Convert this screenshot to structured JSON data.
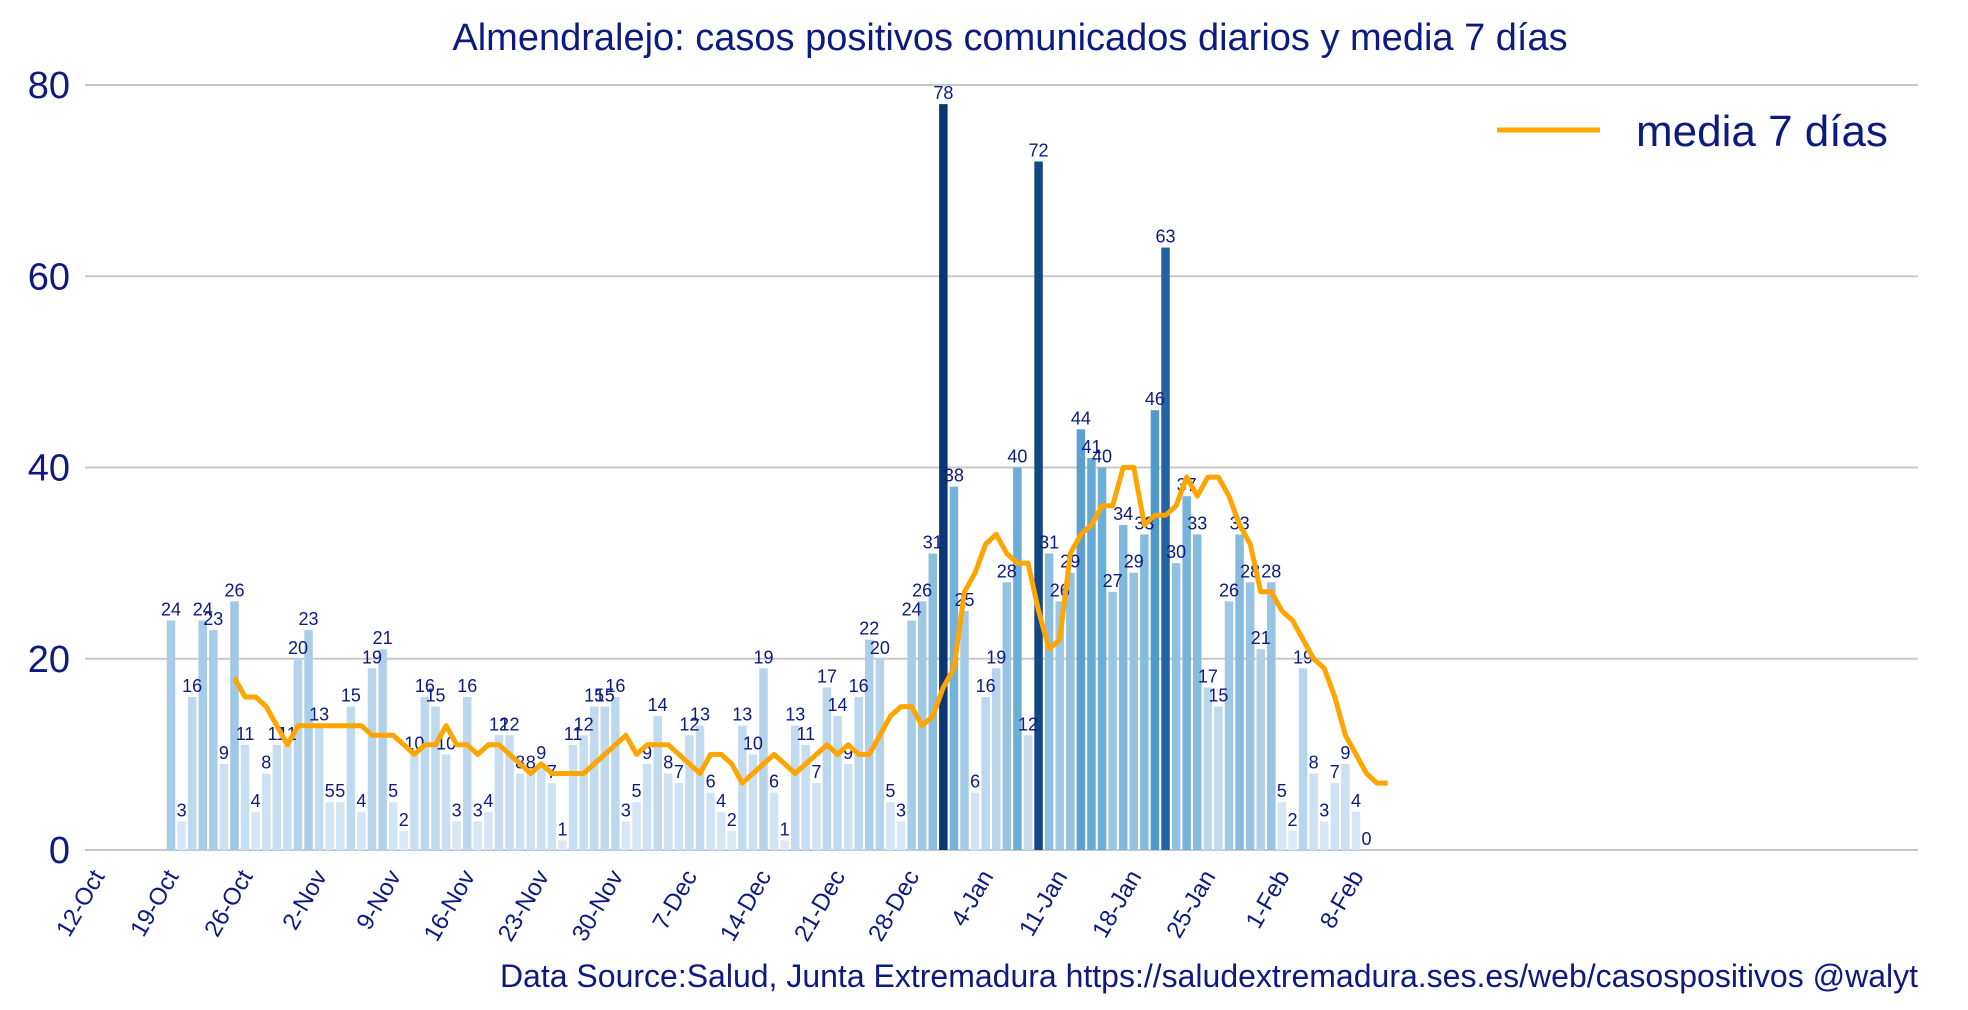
{
  "chart_data": {
    "type": "bar",
    "title": "Almendralejo: casos positivos comunicados diarios y media 7 días",
    "xlabel": "",
    "ylabel": "",
    "ylim": [
      0,
      80
    ],
    "yticks": [
      0,
      20,
      40,
      60,
      80
    ],
    "grid": "horizontal",
    "x_start": "14-Oct",
    "x_end": "5-Feb",
    "xticks": [
      "12-Oct",
      "19-Oct",
      "26-Oct",
      "2-Nov",
      "9-Nov",
      "16-Nov",
      "23-Nov",
      "30-Nov",
      "7-Dec",
      "14-Dec",
      "21-Dec",
      "28-Dec",
      "4-Jan",
      "11-Jan",
      "18-Jan",
      "25-Jan",
      "1-Feb",
      "8-Feb"
    ],
    "series": [
      {
        "type": "bar",
        "values": [
          24,
          3,
          16,
          24,
          23,
          9,
          26,
          11,
          4,
          8,
          11,
          11,
          20,
          23,
          13,
          5,
          5,
          15,
          4,
          19,
          21,
          5,
          2,
          10,
          16,
          15,
          10,
          3,
          16,
          3,
          4,
          12,
          12,
          8,
          8,
          9,
          7,
          1,
          11,
          12,
          15,
          15,
          16,
          3,
          5,
          9,
          14,
          8,
          7,
          12,
          13,
          6,
          4,
          2,
          13,
          10,
          19,
          6,
          1,
          13,
          11,
          7,
          17,
          14,
          9,
          16,
          22,
          20,
          5,
          3,
          24,
          26,
          31,
          78,
          38,
          25,
          6,
          16,
          19,
          28,
          40,
          12,
          72,
          31,
          26,
          29,
          44,
          41,
          40,
          27,
          34,
          29,
          33,
          46,
          63,
          30,
          37,
          33,
          17,
          15,
          26,
          33,
          28,
          21,
          28,
          5,
          2,
          19,
          8,
          3,
          7,
          9,
          4,
          0
        ]
      },
      {
        "type": "line",
        "name": "media 7 días",
        "color": "#ffa500",
        "start_index": 6,
        "values": [
          18,
          16,
          16,
          15,
          13,
          11,
          13,
          13,
          13,
          13,
          13,
          13,
          13,
          12,
          12,
          12,
          11,
          10,
          11,
          11,
          13,
          11,
          11,
          10,
          11,
          11,
          10,
          9,
          8,
          9,
          8,
          8,
          8,
          8,
          9,
          10,
          11,
          12,
          10,
          11,
          11,
          11,
          10,
          9,
          8,
          10,
          10,
          9,
          7,
          8,
          9,
          10,
          9,
          8,
          9,
          10,
          11,
          10,
          11,
          10,
          10,
          12,
          14,
          15,
          15,
          13,
          14,
          17,
          19,
          27,
          29,
          32,
          33,
          31,
          30,
          30,
          25,
          21,
          22,
          31,
          33,
          34,
          36,
          36,
          40,
          40,
          34,
          35,
          35,
          36,
          39,
          37,
          39,
          39,
          37,
          34,
          32,
          27,
          27,
          25,
          24,
          22,
          20,
          19,
          16,
          12,
          10,
          8,
          7,
          7
        ]
      }
    ],
    "legend": {
      "position": "top-right",
      "entries": [
        "media 7 días"
      ]
    },
    "colors": {
      "text": "#0d1a80",
      "line": "#ffa500",
      "bar_low": "#deebf7",
      "bar_high": "#08306b",
      "grid": "#c8c8c8"
    },
    "source": "Data Source:Salud, Junta Extremadura https://saludextremadura.ses.es/web/casospositivos  @walyt"
  }
}
